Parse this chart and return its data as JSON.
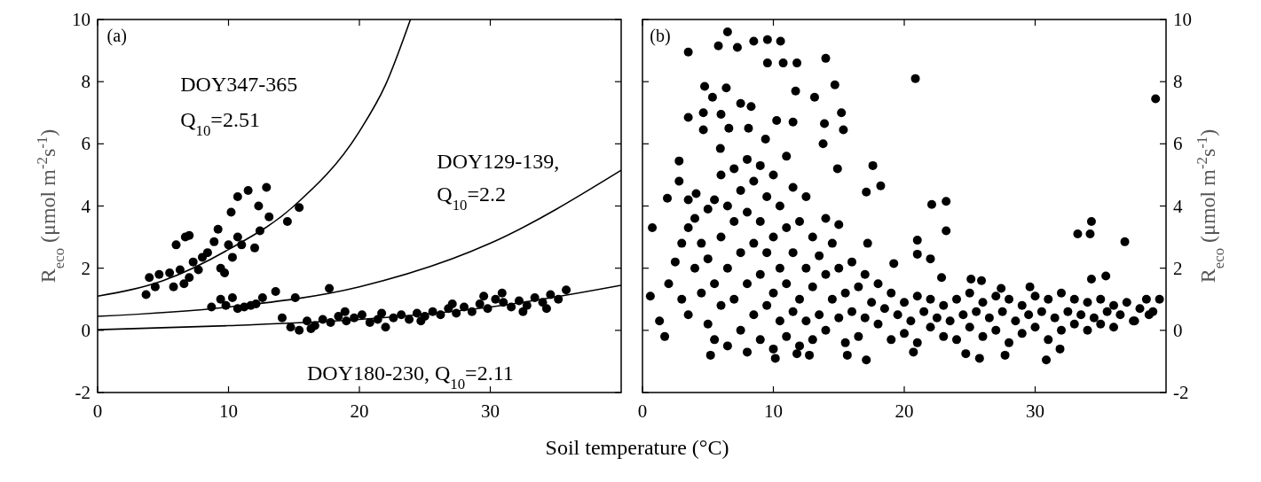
{
  "chart_data": [
    {
      "type": "scatter",
      "xlabel": "Soil temperature (°C)",
      "ylabel": "R$_{eco}$ (μmol m$^{-2}$s$^{-1}$)",
      "xlim": [
        0,
        40
      ],
      "xticks": [
        0,
        10,
        20,
        30
      ],
      "ylim": [
        -2,
        10
      ],
      "yticks": [
        -2,
        0,
        2,
        4,
        6,
        8,
        10
      ],
      "marker": "circle",
      "annotations": [
        "(a)",
        "DOY347-365",
        "Q$_{10}$=2.51",
        "DOY129-139,",
        "Q$_{10}$=2.2",
        "DOY180-230, Q$_{10}$=2.11"
      ],
      "series": [
        {
          "color": "#000000",
          "x": [
            3.7,
            3.95,
            4.7,
            4.4,
            5.8,
            6.0,
            6.7,
            7.0,
            6.6,
            7.3,
            8.0,
            8.4,
            8.9,
            9.2,
            9.4,
            9.7,
            10.2,
            10.7,
            11.5,
            12.3,
            12.9,
            12.4,
            13.1,
            11.0,
            12.0,
            10.3,
            14.5,
            15.4,
            5.5,
            6.3,
            7.7,
            7.0,
            10.0,
            10.7
          ],
          "values": [
            1.15,
            1.7,
            1.8,
            1.4,
            1.4,
            2.75,
            3.0,
            3.05,
            1.5,
            2.2,
            2.35,
            2.5,
            2.85,
            3.25,
            2.0,
            1.85,
            3.8,
            4.3,
            4.5,
            4.0,
            4.6,
            3.2,
            3.65,
            2.75,
            2.65,
            2.35,
            3.5,
            3.95,
            1.85,
            1.95,
            1.95,
            1.7,
            2.75,
            3.0
          ]
        },
        {
          "color": "#000000",
          "x": [
            8.7,
            9.4,
            10.3,
            10.7,
            11.7,
            12.6,
            13.6,
            15.1,
            17.7,
            9.8,
            11.2,
            12.1
          ],
          "values": [
            0.75,
            1.0,
            1.05,
            0.7,
            0.8,
            1.05,
            1.25,
            1.05,
            1.35,
            0.8,
            0.75,
            0.85
          ]
        },
        {
          "color": "#000000",
          "x": [
            14.1,
            14.75,
            15.4,
            16.0,
            16.6,
            17.2,
            17.8,
            18.4,
            19.0,
            19.6,
            20.2,
            20.8,
            21.4,
            22.0,
            22.6,
            23.2,
            23.8,
            24.4,
            25.0,
            25.6,
            26.2,
            26.8,
            27.4,
            28.0,
            28.6,
            29.2,
            29.8,
            30.4,
            31.0,
            31.6,
            32.2,
            32.8,
            33.4,
            34.0,
            34.6,
            35.2,
            35.8,
            16.3,
            18.9,
            21.7,
            24.7,
            27.1,
            29.5,
            30.9,
            32.5,
            34.3
          ],
          "values": [
            0.4,
            0.1,
            0.0,
            0.3,
            0.15,
            0.35,
            0.25,
            0.45,
            0.3,
            0.4,
            0.5,
            0.25,
            0.35,
            0.1,
            0.4,
            0.5,
            0.35,
            0.55,
            0.45,
            0.6,
            0.5,
            0.7,
            0.55,
            0.75,
            0.6,
            0.85,
            0.7,
            1.0,
            0.9,
            0.75,
            0.95,
            0.8,
            1.05,
            0.9,
            1.15,
            1.0,
            1.3,
            0.05,
            0.6,
            0.55,
            0.3,
            0.85,
            1.1,
            1.2,
            0.6,
            0.7
          ]
        },
        {
          "type": "line",
          "color": "#000000",
          "marker": "none",
          "x": [
            0,
            5,
            10,
            15,
            20,
            22,
            23.9
          ],
          "values": [
            1.1,
            1.6,
            2.6,
            4.0,
            6.4,
            7.9,
            10
          ]
        },
        {
          "type": "line",
          "color": "#000000",
          "marker": "none",
          "x": [
            0,
            10,
            20,
            30,
            40
          ],
          "values": [
            0.45,
            0.75,
            1.4,
            2.8,
            5.15
          ]
        },
        {
          "type": "line",
          "color": "#000000",
          "marker": "none",
          "x": [
            0,
            10,
            20,
            30,
            40
          ],
          "values": [
            0.02,
            0.15,
            0.35,
            0.75,
            1.45
          ]
        }
      ]
    },
    {
      "type": "scatter",
      "y2label": "R$_{eco}$ (μmol m$^{-2}$s$^{-1}$)",
      "xlim": [
        0,
        40
      ],
      "xticks": [
        0,
        10,
        20,
        30
      ],
      "y2lim": [
        -2,
        10
      ],
      "y2ticks": [
        -2,
        0,
        2,
        4,
        6,
        8,
        10
      ],
      "marker": "circle",
      "annotations": [
        "(b)"
      ],
      "series": [
        {
          "axis": "y2",
          "color": "#000000",
          "x": [
            3.5,
            5.8,
            6.5,
            7.25,
            8.5,
            9.55,
            10.55,
            9.55,
            10.75,
            11.8,
            14.0,
            20.85,
            39.2,
            4.75,
            6.4,
            5.35,
            7.5,
            8.3,
            11.7,
            13.15,
            14.7,
            3.5,
            4.65,
            4.65,
            6.0,
            6.6,
            8.1,
            10.25,
            11.5,
            13.9,
            15.2,
            15.35,
            9.4,
            5.95,
            2.8,
            2.8,
            13.8,
            14.9,
            17.6,
            18.2,
            17.1,
            22.1,
            23.2,
            23.2,
            21.0,
            21.0,
            22.0,
            17.2,
            33.25,
            34.2,
            34.3,
            36.85,
            1.9,
            0.75,
            3.5,
            4.1,
            35.4,
            34.3,
            39.5,
            38.7,
            37.6,
            19.2,
            22.85,
            25.1,
            25.9,
            29.6,
            27.4,
            17.1,
            5.2,
            1.7,
            1.3,
            0.6,
            10.15,
            11.8,
            12.75,
            15.65,
            25.75,
            27.7,
            30.85,
            31.9,
            20.7,
            24.7,
            2,
            2.5,
            3,
            3,
            3.5,
            3.5,
            4,
            4,
            4.5,
            4.5,
            5,
            5,
            5,
            5.5,
            5.5,
            5.5,
            6,
            6,
            6,
            6.5,
            6.5,
            6.5,
            7,
            7,
            7,
            7.5,
            7.5,
            7.5,
            8,
            8,
            8,
            8,
            8.5,
            8.5,
            8.5,
            9,
            9,
            9,
            9,
            9.5,
            9.5,
            9.5,
            10,
            10,
            10,
            10,
            10.5,
            10.5,
            10.5,
            11,
            11,
            11,
            11,
            11.5,
            11.5,
            11.5,
            12,
            12,
            12,
            12.5,
            12.5,
            12.5,
            13,
            13,
            13,
            13.5,
            13.5,
            14,
            14,
            14,
            14.5,
            14.5,
            15,
            15,
            15,
            15.5,
            15.5,
            16,
            16,
            16.5,
            16.5,
            17,
            17,
            17.5,
            18,
            18,
            18.5,
            19,
            19,
            19.5,
            20,
            20,
            20.5,
            21,
            21,
            21.5,
            22,
            22,
            22.5,
            23,
            23,
            23.5,
            24,
            24,
            24.5,
            25,
            25,
            25.5,
            26,
            26,
            26.5,
            27,
            27,
            27.5,
            28,
            28,
            28.5,
            29,
            29,
            29.5,
            30,
            30,
            30.5,
            31,
            31,
            31.5,
            32,
            32,
            32.5,
            33,
            33,
            33.5,
            34,
            34,
            34.5,
            35,
            35,
            35.5,
            36,
            36,
            36.5,
            37,
            37.5,
            38,
            38.5,
            39
          ],
          "values": [
            8.95,
            9.15,
            9.6,
            9.1,
            9.3,
            9.35,
            9.3,
            8.6,
            8.6,
            8.6,
            8.75,
            8.1,
            7.45,
            7.85,
            7.8,
            7.5,
            7.3,
            7.2,
            7.7,
            7.5,
            7.9,
            6.85,
            7.0,
            6.45,
            6.95,
            6.5,
            6.5,
            6.75,
            6.7,
            6.65,
            7.0,
            6.45,
            6.15,
            5.85,
            5.45,
            4.8,
            6.0,
            5.2,
            5.3,
            4.65,
            4.45,
            4.05,
            4.15,
            3.2,
            2.9,
            2.45,
            2.3,
            2.8,
            3.1,
            3.1,
            3.5,
            2.85,
            4.25,
            3.3,
            4.2,
            4.4,
            1.75,
            1.65,
            1.0,
            0.5,
            0.3,
            2.15,
            1.7,
            1.65,
            1.6,
            1.4,
            1.35,
            -0.95,
            -0.8,
            -0.2,
            0.3,
            1.1,
            -0.9,
            -0.75,
            -0.8,
            -0.8,
            -0.9,
            -0.8,
            -0.95,
            -0.6,
            -0.7,
            -0.75,
            1.5,
            2.2,
            2.8,
            1.0,
            3.3,
            0.5,
            2.0,
            3.6,
            1.2,
            2.8,
            0.2,
            3.9,
            2.3,
            1.5,
            4.2,
            -0.3,
            3.0,
            0.8,
            5.0,
            2.0,
            4.0,
            -0.5,
            3.5,
            1.0,
            5.2,
            2.5,
            0.0,
            4.5,
            1.5,
            3.8,
            5.5,
            -0.7,
            2.8,
            0.5,
            4.8,
            1.8,
            3.5,
            -0.3,
            5.3,
            2.5,
            0.8,
            4.3,
            1.2,
            3.0,
            -0.6,
            5.0,
            2.0,
            0.3,
            4.0,
            1.5,
            3.3,
            -0.2,
            5.6,
            2.5,
            0.6,
            4.6,
            1.0,
            3.5,
            -0.5,
            2.0,
            0.3,
            4.3,
            1.4,
            3.0,
            -0.3,
            2.4,
            0.5,
            1.8,
            3.6,
            0.0,
            1.0,
            2.8,
            0.4,
            2.0,
            3.4,
            1.2,
            -0.4,
            0.6,
            2.2,
            1.4,
            -0.2,
            0.4,
            1.8,
            0.9,
            0.2,
            1.5,
            0.7,
            -0.3,
            1.2,
            0.5,
            0.9,
            -0.1,
            0.3,
            1.1,
            -0.4,
            0.6,
            0.1,
            1.0,
            0.4,
            -0.2,
            0.8,
            0.3,
            1.0,
            -0.3,
            0.5,
            0.1,
            1.2,
            0.6,
            -0.2,
            0.9,
            0.4,
            1.1,
            0.0,
            0.6,
            -0.4,
            1.0,
            0.3,
            0.8,
            -0.1,
            0.5,
            1.1,
            0.1,
            0.6,
            -0.3,
            1.0,
            0.4,
            1.2,
            0.0,
            0.6,
            0.2,
            1.0,
            0.5,
            0.0,
            0.9,
            0.4,
            1.0,
            0.2,
            0.6,
            0.8,
            0.1,
            0.5,
            0.9,
            0.3,
            0.7,
            1.0,
            0.6
          ]
        }
      ]
    }
  ]
}
